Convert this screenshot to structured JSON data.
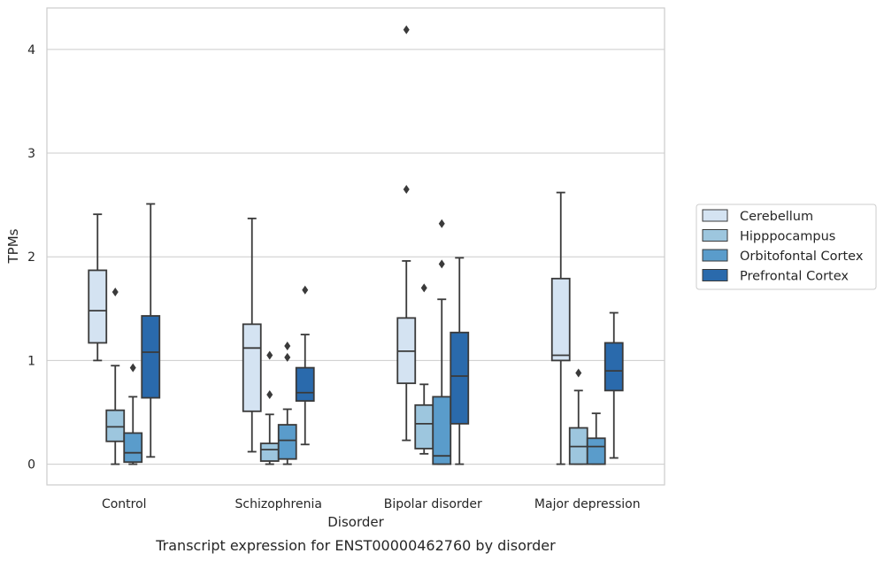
{
  "chart_data": {
    "type": "box",
    "title": "Transcript expression for ENST00000462760 by disorder",
    "xlabel": "Disorder",
    "ylabel": "TPMs",
    "ylim": [
      -0.2,
      4.4
    ],
    "yticks": [
      0,
      1,
      2,
      3,
      4
    ],
    "ytick_labels": [
      "0",
      "1",
      "2",
      "3",
      "4"
    ],
    "grid": "horizontal",
    "legend_position": "right",
    "categories": [
      "Control",
      "Schizophrenia",
      "Bipolar disorder",
      "Major depression"
    ],
    "series": [
      {
        "name": "Cerebellum",
        "color": "#d4e3f2",
        "boxes": [
          {
            "whisker_low": 1.0,
            "q1": 1.17,
            "median": 1.48,
            "q3": 1.87,
            "whisker_high": 2.41,
            "outliers": []
          },
          {
            "whisker_low": 0.12,
            "q1": 0.51,
            "median": 1.12,
            "q3": 1.35,
            "whisker_high": 2.37,
            "outliers": []
          },
          {
            "whisker_low": 0.23,
            "q1": 0.78,
            "median": 1.09,
            "q3": 1.41,
            "whisker_high": 1.96,
            "outliers": [
              2.65,
              4.19
            ]
          },
          {
            "whisker_low": 0.0,
            "q1": 1.0,
            "median": 1.05,
            "q3": 1.79,
            "whisker_high": 2.62,
            "outliers": []
          }
        ]
      },
      {
        "name": "Hipppocampus",
        "color": "#9dc6de",
        "boxes": [
          {
            "whisker_low": 0.0,
            "q1": 0.22,
            "median": 0.36,
            "q3": 0.52,
            "whisker_high": 0.95,
            "outliers": [
              1.66
            ]
          },
          {
            "whisker_low": 0.0,
            "q1": 0.03,
            "median": 0.14,
            "q3": 0.2,
            "whisker_high": 0.48,
            "outliers": [
              0.67,
              1.05
            ]
          },
          {
            "whisker_low": 0.1,
            "q1": 0.15,
            "median": 0.39,
            "q3": 0.57,
            "whisker_high": 0.77,
            "outliers": [
              1.7
            ]
          },
          {
            "whisker_low": 0.0,
            "q1": 0.0,
            "median": 0.17,
            "q3": 0.35,
            "whisker_high": 0.71,
            "outliers": [
              0.88
            ]
          }
        ]
      },
      {
        "name": "Orbitofontal Cortex",
        "color": "#5a9ccb",
        "boxes": [
          {
            "whisker_low": 0.0,
            "q1": 0.02,
            "median": 0.11,
            "q3": 0.3,
            "whisker_high": 0.65,
            "outliers": [
              0.93
            ]
          },
          {
            "whisker_low": 0.0,
            "q1": 0.05,
            "median": 0.23,
            "q3": 0.38,
            "whisker_high": 0.53,
            "outliers": [
              1.03,
              1.14
            ]
          },
          {
            "whisker_low": 0.0,
            "q1": 0.0,
            "median": 0.08,
            "q3": 0.65,
            "whisker_high": 1.59,
            "outliers": [
              1.93,
              2.32
            ]
          },
          {
            "whisker_low": 0.0,
            "q1": 0.0,
            "median": 0.17,
            "q3": 0.25,
            "whisker_high": 0.49,
            "outliers": []
          }
        ]
      },
      {
        "name": "Prefrontal Cortex",
        "color": "#2a6aac",
        "boxes": [
          {
            "whisker_low": 0.07,
            "q1": 0.64,
            "median": 1.08,
            "q3": 1.43,
            "whisker_high": 2.51,
            "outliers": []
          },
          {
            "whisker_low": 0.19,
            "q1": 0.61,
            "median": 0.69,
            "q3": 0.93,
            "whisker_high": 1.25,
            "outliers": [
              1.68
            ]
          },
          {
            "whisker_low": 0.0,
            "q1": 0.39,
            "median": 0.85,
            "q3": 1.27,
            "whisker_high": 1.99,
            "outliers": []
          },
          {
            "whisker_low": 0.06,
            "q1": 0.71,
            "median": 0.9,
            "q3": 1.17,
            "whisker_high": 1.46,
            "outliers": []
          }
        ]
      }
    ]
  },
  "colors": {
    "grid": "#cccccc",
    "frame": "#cccccc",
    "box_edge": "#3a3a3a",
    "text": "#262626"
  }
}
